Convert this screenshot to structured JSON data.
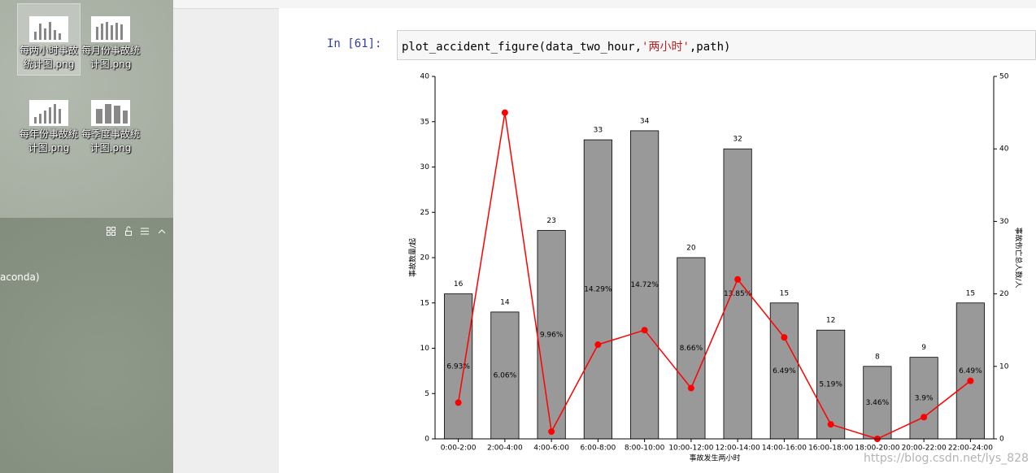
{
  "desktop": {
    "icons": [
      {
        "label": "每两小时事故统计图.png"
      },
      {
        "label": "每月份事故统计图.png"
      },
      {
        "label": "每年份事故统计图.png"
      },
      {
        "label": "每季度事故统计图.png"
      }
    ],
    "panel_text": "aconda)"
  },
  "notebook": {
    "prompt": "In  [61]:",
    "code": [
      "plot_accident_figure(data_two_hour,",
      "'两小时'",
      ",path)"
    ]
  },
  "chart_data": {
    "type": "bar",
    "xlabel": "事故发生两小时",
    "ylabel": "事故数量/起",
    "y2label": "事故伤亡总人数/人",
    "categories": [
      "0:00-2:00",
      "2:00-4:00",
      "4:00-6:00",
      "6:00-8:00",
      "8:00-10:00",
      "10:00-12:00",
      "12:00-14:00",
      "14:00-16:00",
      "16:00-18:00",
      "18:00-20:00",
      "20:00-22:00",
      "22:00-24:00"
    ],
    "series": [
      {
        "type": "bar",
        "color": "#999999",
        "values": [
          16,
          14,
          23,
          33,
          34,
          20,
          32,
          15,
          12,
          8,
          9,
          15
        ],
        "share_labels": [
          "6.93%",
          "6.06%",
          "9.96%",
          "14.29%",
          "14.72%",
          "8.66%",
          "13.85%",
          "6.49%",
          "5.19%",
          "3.46%",
          "3.9%",
          "6.49%"
        ]
      },
      {
        "type": "line",
        "axis": "y2",
        "color": "#ff0000",
        "values": [
          5,
          45,
          1,
          13,
          15,
          7,
          22,
          14,
          2,
          0,
          3,
          8
        ]
      }
    ],
    "ylim": [
      0,
      40
    ],
    "yticks": [
      0,
      5,
      10,
      15,
      20,
      25,
      30,
      35,
      40
    ],
    "y2lim": [
      0,
      50
    ],
    "y2ticks": [
      0,
      10,
      20,
      30,
      40,
      50
    ]
  },
  "watermark": "https://blog.csdn.net/lys_828"
}
